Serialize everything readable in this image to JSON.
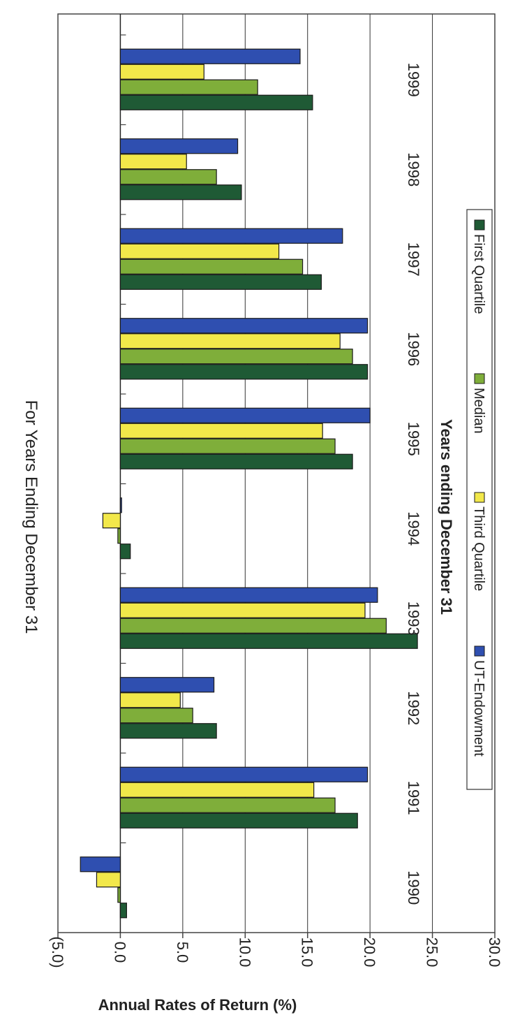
{
  "chart_data": {
    "type": "bar",
    "orientation": "horizontal",
    "title": "For Years Ending December 31",
    "xlabel": "Years ending December 31",
    "ylabel": "Annual Rates of Return (%)",
    "ylim": [
      -5,
      30
    ],
    "yticks": [
      -5,
      0,
      5,
      10,
      15,
      20,
      25,
      30
    ],
    "ytick_labels": [
      "(5.0)",
      "0.0",
      "5.0",
      "10.0",
      "15.0",
      "20.0",
      "25.0",
      "30.0"
    ],
    "grid": true,
    "legend_position": "bottom",
    "categories": [
      "1990",
      "1991",
      "1992",
      "1993",
      "1994",
      "1995",
      "1996",
      "1997",
      "1998",
      "1999"
    ],
    "series": [
      {
        "name": "First Quartile",
        "color": "#1f5a35",
        "values": [
          0.5,
          19.0,
          7.7,
          23.8,
          0.8,
          18.6,
          19.8,
          16.1,
          9.7,
          15.4
        ]
      },
      {
        "name": "Median",
        "color": "#7fae3a",
        "values": [
          -0.2,
          17.2,
          5.8,
          21.3,
          -0.2,
          17.2,
          18.6,
          14.6,
          7.7,
          11.0
        ]
      },
      {
        "name": "Third Quartile",
        "color": "#f2e84a",
        "values": [
          -1.9,
          15.5,
          4.8,
          19.6,
          -1.4,
          16.2,
          17.6,
          12.7,
          5.3,
          6.7
        ]
      },
      {
        "name": "UT-Endowment",
        "color": "#2f4fb0",
        "values": [
          -3.2,
          19.8,
          7.5,
          20.6,
          0.1,
          20.0,
          19.8,
          17.8,
          9.4,
          14.4
        ]
      }
    ]
  }
}
